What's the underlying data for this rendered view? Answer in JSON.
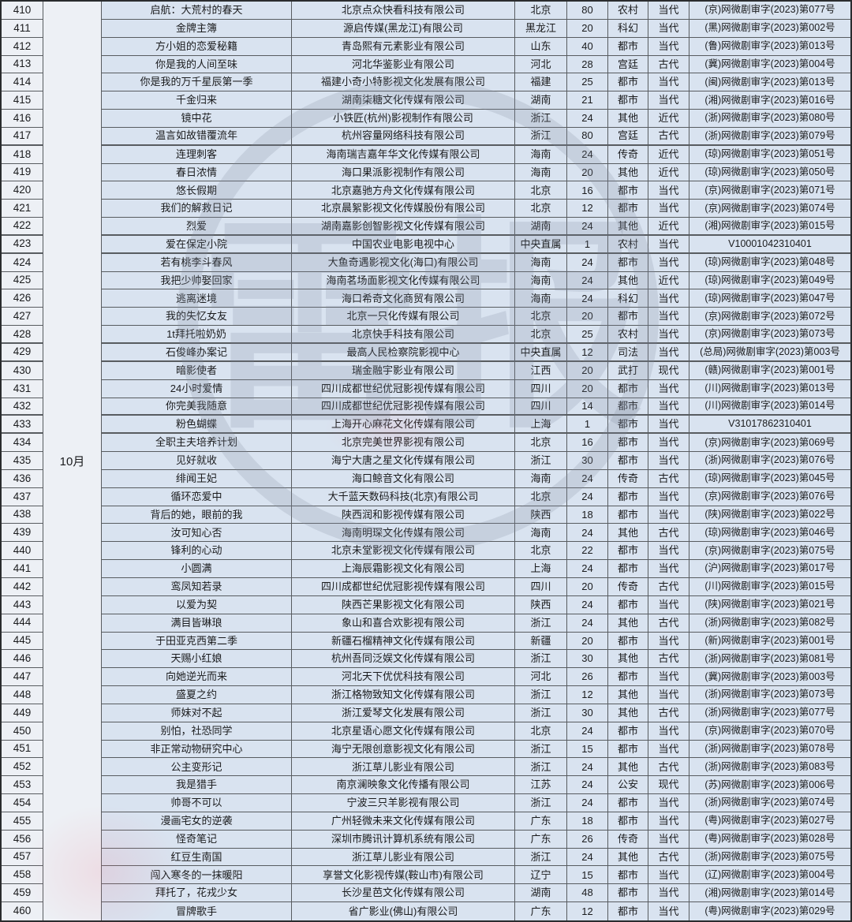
{
  "watermark": {
    "text": "雷报"
  },
  "table": {
    "month_label": "10月",
    "rows": [
      [
        "410",
        "启航：大荒村的春天",
        "北京点众快看科技有限公司",
        "北京",
        "80",
        "农村",
        "当代",
        "(京)网微剧审字(2023)第077号"
      ],
      [
        "411",
        "金牌主簿",
        "源启传媒(黑龙江)有限公司",
        "黑龙江",
        "20",
        "科幻",
        "当代",
        "(黑)网微剧审字(2023)第002号"
      ],
      [
        "412",
        "方小姐的恋爱秘籍",
        "青岛熙有元素影业有限公司",
        "山东",
        "40",
        "都市",
        "当代",
        "(鲁)网微剧审字(2023)第013号"
      ],
      [
        "413",
        "你是我的人间至味",
        "河北华鉴影业有限公司",
        "河北",
        "28",
        "宫廷",
        "古代",
        "(冀)网微剧审字(2023)第004号"
      ],
      [
        "414",
        "你是我的万千星辰第一季",
        "福建小奇小特影视文化发展有限公司",
        "福建",
        "25",
        "都市",
        "当代",
        "(闽)网微剧审字(2023)第013号"
      ],
      [
        "415",
        "千金归来",
        "湖南柒糖文化传媒有限公司",
        "湖南",
        "21",
        "都市",
        "当代",
        "(湘)网微剧审字(2023)第016号"
      ],
      [
        "416",
        "镜中花",
        "小铁匠(杭州)影视制作有限公司",
        "浙江",
        "24",
        "其他",
        "近代",
        "(浙)网微剧审字(2023)第080号"
      ],
      [
        "417",
        "温言如故错覆流年",
        "杭州容量网络科技有限公司",
        "浙江",
        "80",
        "宫廷",
        "古代",
        "(浙)网微剧审字(2023)第079号"
      ],
      [
        "418",
        "连理刺客",
        "海南瑞吉嘉年华文化传媒有限公司",
        "海南",
        "24",
        "传奇",
        "近代",
        "(琼)网微剧审字(2023)第051号"
      ],
      [
        "419",
        "春日浓情",
        "海口果派影视制作有限公司",
        "海南",
        "20",
        "其他",
        "近代",
        "(琼)网微剧审字(2023)第050号"
      ],
      [
        "420",
        "悠长假期",
        "北京嘉驰方舟文化传媒有限公司",
        "北京",
        "16",
        "都市",
        "当代",
        "(京)网微剧审字(2023)第071号"
      ],
      [
        "421",
        "我们的解救日记",
        "北京晨絮影视文化传媒股份有限公司",
        "北京",
        "12",
        "都市",
        "当代",
        "(京)网微剧审字(2023)第074号"
      ],
      [
        "422",
        "烈爱",
        "湖南嘉影创智影视文化传媒有限公司",
        "湖南",
        "24",
        "其他",
        "近代",
        "(湘)网微剧审字(2023)第015号"
      ],
      [
        "423",
        "爱在保定小院",
        "中国农业电影电视中心",
        "中央直属",
        "1",
        "农村",
        "当代",
        "V10001042310401"
      ],
      [
        "424",
        "若有桃李斗春风",
        "大鱼奇遇影视文化(海口)有限公司",
        "海南",
        "24",
        "都市",
        "当代",
        "(琼)网微剧审字(2023)第048号"
      ],
      [
        "425",
        "我把少帅娶回家",
        "海南茗场面影视文化传媒有限公司",
        "海南",
        "24",
        "其他",
        "近代",
        "(琼)网微剧审字(2023)第049号"
      ],
      [
        "426",
        "逃离迷境",
        "海口希奇文化商贸有限公司",
        "海南",
        "24",
        "科幻",
        "当代",
        "(琼)网微剧审字(2023)第047号"
      ],
      [
        "427",
        "我的失忆女友",
        "北京一只化传媒有限公司",
        "北京",
        "20",
        "都市",
        "当代",
        "(京)网微剧审字(2023)第072号"
      ],
      [
        "428",
        "1t拜托啦奶奶",
        "北京快手科技有限公司",
        "北京",
        "25",
        "农村",
        "当代",
        "(京)网微剧审字(2023)第073号"
      ],
      [
        "429",
        "石俊峰办案记",
        "最高人民检察院影视中心",
        "中央直属",
        "12",
        "司法",
        "当代",
        "(总局)网微剧审字(2023)第003号"
      ],
      [
        "430",
        "暗影使者",
        "瑞金融宇影业有限公司",
        "江西",
        "20",
        "武打",
        "现代",
        "(赣)网微剧审字(2023)第001号"
      ],
      [
        "431",
        "24小时爱情",
        "四川成都世纪优冠影视传媒有限公司",
        "四川",
        "20",
        "都市",
        "当代",
        "(川)网微剧审字(2023)第013号"
      ],
      [
        "432",
        "你完美我随意",
        "四川成都世纪优冠影视传媒有限公司",
        "四川",
        "14",
        "都市",
        "当代",
        "(川)网微剧审字(2023)第014号"
      ],
      [
        "433",
        "粉色蝴蝶",
        "上海开心麻花文化传媒有限公司",
        "上海",
        "1",
        "都市",
        "当代",
        "V31017862310401"
      ],
      [
        "434",
        "全职主夫培养计划",
        "北京完美世界影视有限公司",
        "北京",
        "16",
        "都市",
        "当代",
        "(京)网微剧审字(2023)第069号"
      ],
      [
        "435",
        "见好就收",
        "海宁大唐之星文化传媒有限公司",
        "浙江",
        "30",
        "都市",
        "当代",
        "(浙)网微剧审字(2023)第076号"
      ],
      [
        "436",
        "绯闻王妃",
        "海口鲸音文化有限公司",
        "海南",
        "24",
        "传奇",
        "古代",
        "(琼)网微剧审字(2023)第045号"
      ],
      [
        "437",
        "循环恋爱中",
        "大千蓝天数码科技(北京)有限公司",
        "北京",
        "24",
        "都市",
        "当代",
        "(京)网微剧审字(2023)第076号"
      ],
      [
        "438",
        "背后的她，眼前的我",
        "陕西润和影视传媒有限公司",
        "陕西",
        "18",
        "都市",
        "当代",
        "(陕)网微剧审字(2023)第022号"
      ],
      [
        "439",
        "汝可知心否",
        "海南明琛文化传媒有限公司",
        "海南",
        "24",
        "其他",
        "古代",
        "(琼)网微剧审字(2023)第046号"
      ],
      [
        "440",
        "锋利的心动",
        "北京未堂影视文化传媒有限公司",
        "北京",
        "22",
        "都市",
        "当代",
        "(京)网微剧审字(2023)第075号"
      ],
      [
        "441",
        "小圆满",
        "上海辰霜影视文化有限公司",
        "上海",
        "24",
        "都市",
        "当代",
        "(沪)网微剧审字(2023)第017号"
      ],
      [
        "442",
        "鸾凤知若录",
        "四川成都世纪优冠影视传媒有限公司",
        "四川",
        "20",
        "传奇",
        "古代",
        "(川)网微剧审字(2023)第015号"
      ],
      [
        "443",
        "以爱为契",
        "陕西芒果影视文化有限公司",
        "陕西",
        "24",
        "都市",
        "当代",
        "(陕)网微剧审字(2023)第021号"
      ],
      [
        "444",
        "满目皆琳琅",
        "象山和喜合欢影视有限公司",
        "浙江",
        "24",
        "其他",
        "古代",
        "(浙)网微剧审字(2023)第082号"
      ],
      [
        "445",
        "于田亚克西第二季",
        "新疆石榴精神文化传媒有限公司",
        "新疆",
        "20",
        "都市",
        "当代",
        "(新)网微剧审字(2023)第001号"
      ],
      [
        "446",
        "天赐小红娘",
        "杭州吾同泛娱文化传媒有限公司",
        "浙江",
        "30",
        "其他",
        "古代",
        "(浙)网微剧审字(2023)第081号"
      ],
      [
        "447",
        "向她逆光而来",
        "河北天下优优科技有限公司",
        "河北",
        "26",
        "都市",
        "当代",
        "(冀)网微剧审字(2023)第003号"
      ],
      [
        "448",
        "盛夏之约",
        "浙江格物致知文化传媒有限公司",
        "浙江",
        "12",
        "其他",
        "当代",
        "(浙)网微剧审字(2023)第073号"
      ],
      [
        "449",
        "师妹对不起",
        "浙江爱琴文化发展有限公司",
        "浙江",
        "30",
        "其他",
        "古代",
        "(浙)网微剧审字(2023)第077号"
      ],
      [
        "450",
        "别怕，社恐同学",
        "北京星语心愿文化传媒有限公司",
        "北京",
        "24",
        "都市",
        "当代",
        "(京)网微剧审字(2023)第070号"
      ],
      [
        "451",
        "非正常动物研究中心",
        "海宁无限创意影视文化有限公司",
        "浙江",
        "15",
        "都市",
        "当代",
        "(浙)网微剧审字(2023)第078号"
      ],
      [
        "452",
        "公主变形记",
        "浙江草儿影业有限公司",
        "浙江",
        "24",
        "其他",
        "古代",
        "(浙)网微剧审字(2023)第083号"
      ],
      [
        "453",
        "我是猎手",
        "南京澜映象文化传播有限公司",
        "江苏",
        "24",
        "公安",
        "现代",
        "(苏)网微剧审字(2023)第006号"
      ],
      [
        "454",
        "帅哥不可以",
        "宁波三只羊影视有限公司",
        "浙江",
        "24",
        "都市",
        "当代",
        "(浙)网微剧审字(2023)第074号"
      ],
      [
        "455",
        "漫画宅女的逆袭",
        "广州轻微未来文化传媒有限公司",
        "广东",
        "18",
        "都市",
        "当代",
        "(粤)网微剧审字(2023)第027号"
      ],
      [
        "456",
        "怪奇笔记",
        "深圳市腾讯计算机系统有限公司",
        "广东",
        "26",
        "传奇",
        "当代",
        "(粤)网微剧审字(2023)第028号"
      ],
      [
        "457",
        "红豆生南国",
        "浙江草儿影业有限公司",
        "浙江",
        "24",
        "其他",
        "古代",
        "(浙)网微剧审字(2023)第075号"
      ],
      [
        "458",
        "闯入寒冬的一抹暖阳",
        "享誉文化影视传媒(鞍山市)有限公司",
        "辽宁",
        "15",
        "都市",
        "当代",
        "(辽)网微剧审字(2023)第004号"
      ],
      [
        "459",
        "拜托了，花戎少女",
        "长沙星芭文化传媒有限公司",
        "湖南",
        "48",
        "都市",
        "当代",
        "(湘)网微剧审字(2023)第014号"
      ],
      [
        "460",
        "冒牌歌手",
        "省广影业(佛山)有限公司",
        "广东",
        "12",
        "都市",
        "当代",
        "(粤)网微剧审字(2023)第029号"
      ]
    ]
  }
}
